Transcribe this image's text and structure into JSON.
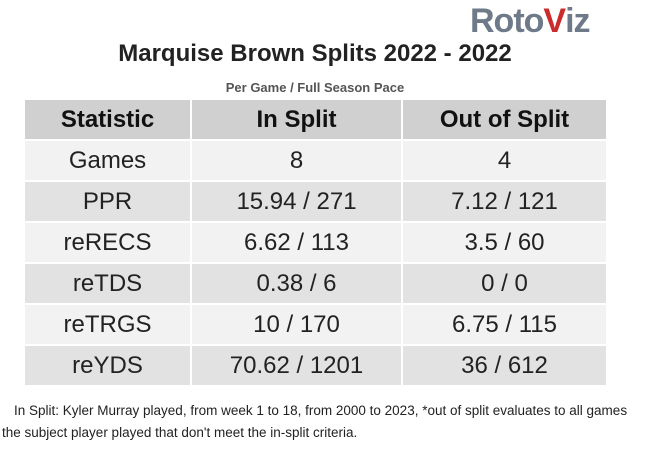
{
  "brand": {
    "logo_text_left": "Roto",
    "logo_text_right": "iz",
    "logo_v": "V",
    "colors": {
      "grey": "#6e7a8a",
      "red": "#cc2b2b"
    }
  },
  "title": "Marquise Brown Splits 2022 - 2022",
  "subtitle": "Per Game / Full Season Pace",
  "table": {
    "headers": [
      "Statistic",
      "In Split",
      "Out of Split"
    ],
    "rows": [
      [
        "Games",
        "8",
        "4"
      ],
      [
        "PPR",
        "15.94 / 271",
        "7.12 / 121"
      ],
      [
        "reRECS",
        "6.62 / 113",
        "3.5 / 60"
      ],
      [
        "reTDS",
        "0.38 / 6",
        "0 / 0"
      ],
      [
        "reTRGS",
        "10 / 170",
        "6.75 / 115"
      ],
      [
        "reYDS",
        "70.62 / 1201",
        "36 / 612"
      ]
    ]
  },
  "footnote": "In Split: Kyler Murray played, from week 1 to 18, from 2000 to 2023,  *out of split evaluates to all games the subject player played that don't meet the in-split criteria."
}
